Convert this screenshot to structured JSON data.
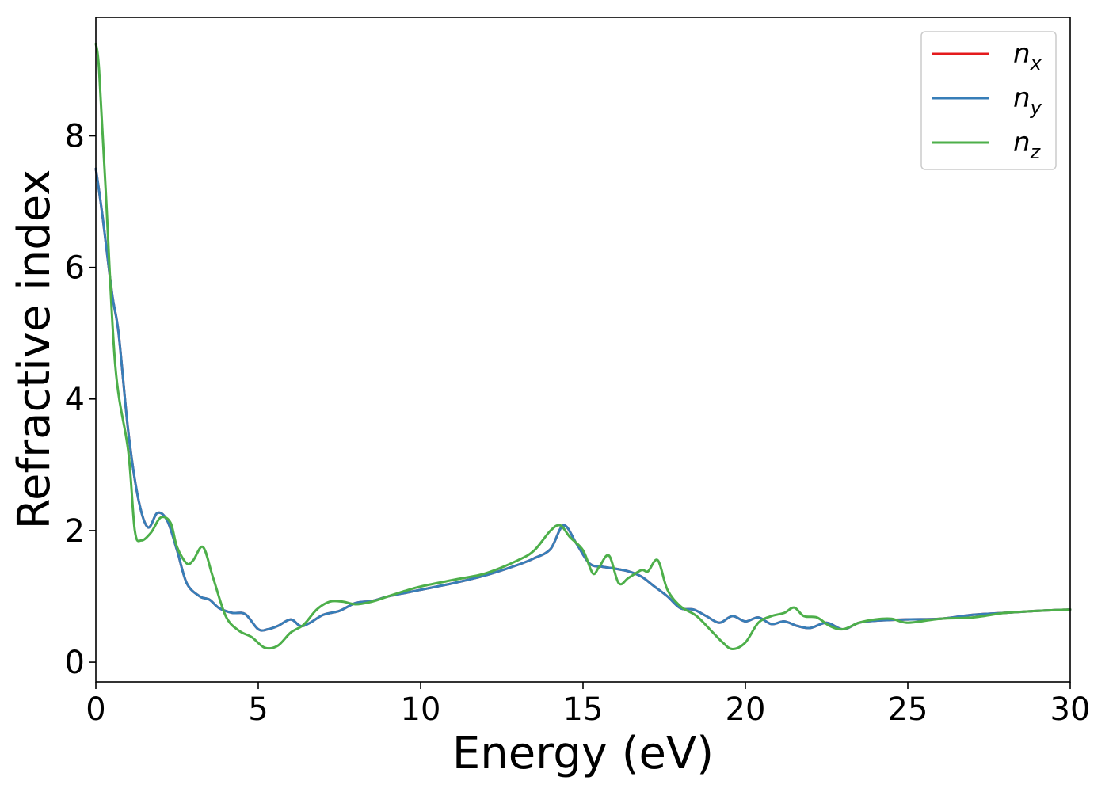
{
  "chart_data": {
    "type": "line",
    "xlabel": "Energy (eV)",
    "ylabel": "Refractive index",
    "xlim": [
      0,
      30
    ],
    "ylim": [
      -0.3,
      9.8
    ],
    "xticks": [
      0,
      5,
      10,
      15,
      20,
      25,
      30
    ],
    "yticks": [
      0,
      2,
      4,
      6,
      8
    ],
    "grid": false,
    "legend_position": "top-right",
    "series": [
      {
        "name": "n_x",
        "label_base": "n",
        "label_sub": "x",
        "color": "#e41a1c",
        "x": [
          0,
          0.2,
          0.5,
          0.7,
          1.0,
          1.3,
          1.6,
          1.9,
          2.2,
          2.5,
          2.8,
          3.2,
          3.5,
          3.8,
          4.2,
          4.6,
          5.0,
          5.3,
          5.6,
          6.0,
          6.3,
          6.6,
          7.0,
          7.5,
          8.0,
          8.5,
          9.0,
          9.5,
          10.0,
          11.0,
          12.0,
          13.0,
          13.5,
          14.0,
          14.4,
          14.8,
          15.2,
          15.6,
          16.0,
          16.4,
          16.8,
          17.2,
          17.6,
          18.0,
          18.4,
          18.8,
          19.2,
          19.6,
          20.0,
          20.4,
          20.8,
          21.2,
          21.6,
          22.0,
          22.5,
          23.0,
          23.5,
          24.0,
          25.0,
          26.0,
          27.0,
          28.0,
          29.0,
          30.0
        ],
        "y": [
          7.5,
          6.8,
          5.6,
          5.0,
          3.5,
          2.5,
          2.05,
          2.27,
          2.15,
          1.7,
          1.2,
          1.0,
          0.95,
          0.82,
          0.75,
          0.73,
          0.5,
          0.5,
          0.55,
          0.65,
          0.55,
          0.6,
          0.72,
          0.78,
          0.9,
          0.93,
          1.0,
          1.05,
          1.1,
          1.2,
          1.32,
          1.48,
          1.58,
          1.72,
          2.08,
          1.8,
          1.5,
          1.45,
          1.42,
          1.38,
          1.3,
          1.15,
          1.0,
          0.82,
          0.8,
          0.7,
          0.6,
          0.7,
          0.62,
          0.68,
          0.58,
          0.62,
          0.55,
          0.52,
          0.6,
          0.5,
          0.6,
          0.63,
          0.65,
          0.66,
          0.72,
          0.75,
          0.78,
          0.8
        ]
      },
      {
        "name": "n_y",
        "label_base": "n",
        "label_sub": "y",
        "color": "#377eb8",
        "x": [
          0,
          0.2,
          0.5,
          0.7,
          1.0,
          1.3,
          1.6,
          1.9,
          2.2,
          2.5,
          2.8,
          3.2,
          3.5,
          3.8,
          4.2,
          4.6,
          5.0,
          5.3,
          5.6,
          6.0,
          6.3,
          6.6,
          7.0,
          7.5,
          8.0,
          8.5,
          9.0,
          9.5,
          10.0,
          11.0,
          12.0,
          13.0,
          13.5,
          14.0,
          14.4,
          14.8,
          15.2,
          15.6,
          16.0,
          16.4,
          16.8,
          17.2,
          17.6,
          18.0,
          18.4,
          18.8,
          19.2,
          19.6,
          20.0,
          20.4,
          20.8,
          21.2,
          21.6,
          22.0,
          22.5,
          23.0,
          23.5,
          24.0,
          25.0,
          26.0,
          27.0,
          28.0,
          29.0,
          30.0
        ],
        "y": [
          7.5,
          6.8,
          5.6,
          5.0,
          3.5,
          2.5,
          2.05,
          2.27,
          2.15,
          1.7,
          1.2,
          1.0,
          0.95,
          0.82,
          0.75,
          0.73,
          0.5,
          0.5,
          0.55,
          0.65,
          0.55,
          0.6,
          0.72,
          0.78,
          0.9,
          0.93,
          1.0,
          1.05,
          1.1,
          1.2,
          1.32,
          1.48,
          1.58,
          1.72,
          2.08,
          1.8,
          1.5,
          1.45,
          1.42,
          1.38,
          1.3,
          1.15,
          1.0,
          0.82,
          0.8,
          0.7,
          0.6,
          0.7,
          0.62,
          0.68,
          0.58,
          0.62,
          0.55,
          0.52,
          0.6,
          0.5,
          0.6,
          0.63,
          0.65,
          0.66,
          0.72,
          0.75,
          0.78,
          0.8
        ]
      },
      {
        "name": "n_z",
        "label_base": "n",
        "label_sub": "z",
        "color": "#4daf4a",
        "x": [
          0,
          0.1,
          0.3,
          0.6,
          1.0,
          1.2,
          1.4,
          1.7,
          2.0,
          2.3,
          2.5,
          2.8,
          3.0,
          3.3,
          3.6,
          4.0,
          4.4,
          4.8,
          5.2,
          5.6,
          6.0,
          6.4,
          6.8,
          7.2,
          7.6,
          8.0,
          8.5,
          9.0,
          9.5,
          10.0,
          11.0,
          12.0,
          13.0,
          13.5,
          14.0,
          14.3,
          14.6,
          15.0,
          15.3,
          15.5,
          15.8,
          16.1,
          16.4,
          16.8,
          17.0,
          17.3,
          17.6,
          18.0,
          18.5,
          19.0,
          19.3,
          19.6,
          20.0,
          20.4,
          20.8,
          21.2,
          21.5,
          21.8,
          22.2,
          22.6,
          23.0,
          23.5,
          24.0,
          24.5,
          25.0,
          26.0,
          27.0,
          28.0,
          29.0,
          30.0
        ],
        "y": [
          9.4,
          9.0,
          7.2,
          4.5,
          3.2,
          2.0,
          1.85,
          1.97,
          2.2,
          2.12,
          1.75,
          1.5,
          1.55,
          1.75,
          1.3,
          0.7,
          0.48,
          0.38,
          0.22,
          0.25,
          0.45,
          0.57,
          0.8,
          0.92,
          0.92,
          0.88,
          0.92,
          1.0,
          1.08,
          1.15,
          1.25,
          1.35,
          1.55,
          1.7,
          2.0,
          2.08,
          1.9,
          1.7,
          1.35,
          1.45,
          1.62,
          1.2,
          1.28,
          1.4,
          1.38,
          1.55,
          1.1,
          0.85,
          0.7,
          0.45,
          0.3,
          0.2,
          0.3,
          0.6,
          0.7,
          0.75,
          0.83,
          0.7,
          0.68,
          0.55,
          0.5,
          0.6,
          0.65,
          0.66,
          0.6,
          0.66,
          0.68,
          0.75,
          0.78,
          0.8
        ]
      }
    ]
  }
}
